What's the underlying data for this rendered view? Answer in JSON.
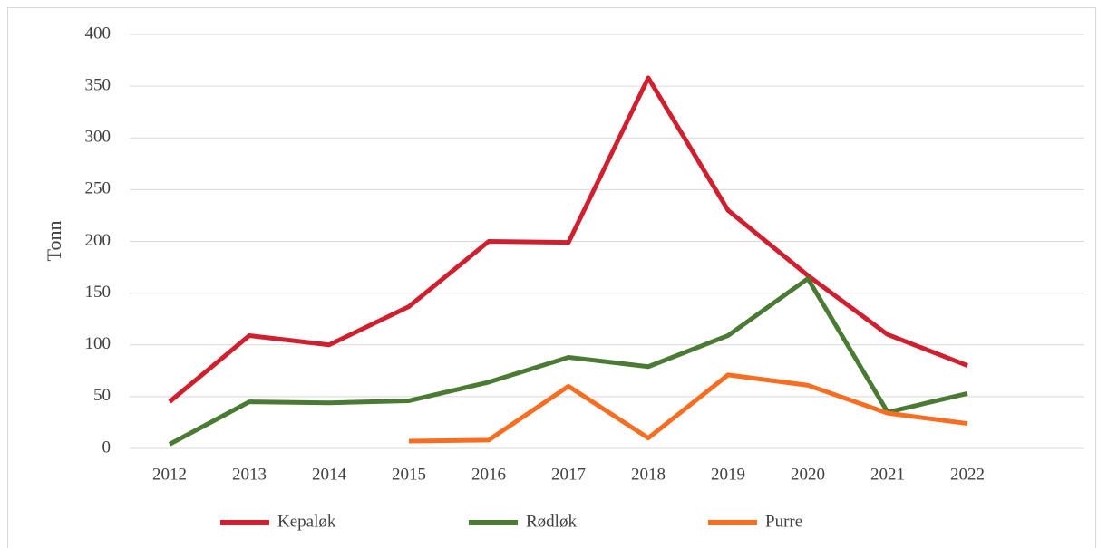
{
  "chart_data": {
    "type": "line",
    "y_label": "Tonn",
    "categories": [
      "2012",
      "2013",
      "2014",
      "2015",
      "2016",
      "2017",
      "2018",
      "2019",
      "2020",
      "2021",
      "2022",
      null
    ],
    "series": [
      {
        "name": "Kepaløk",
        "color": "#d0202f",
        "values": [
          45,
          109,
          100,
          137,
          200,
          199,
          358,
          230,
          167,
          110,
          80,
          null
        ]
      },
      {
        "name": "Rødløk",
        "color": "#4a7a33",
        "values": [
          4,
          45,
          44,
          46,
          64,
          88,
          79,
          109,
          164,
          35,
          53,
          null
        ]
      },
      {
        "name": "Purre",
        "color": "#f76e22",
        "values": [
          null,
          null,
          null,
          7,
          8,
          60,
          10,
          71,
          61,
          34,
          24,
          null
        ]
      }
    ],
    "ylim": [
      0,
      400
    ],
    "yticks": [
      0,
      50,
      100,
      150,
      200,
      250,
      300,
      350,
      400
    ],
    "grid": true,
    "legend": "bottom"
  }
}
